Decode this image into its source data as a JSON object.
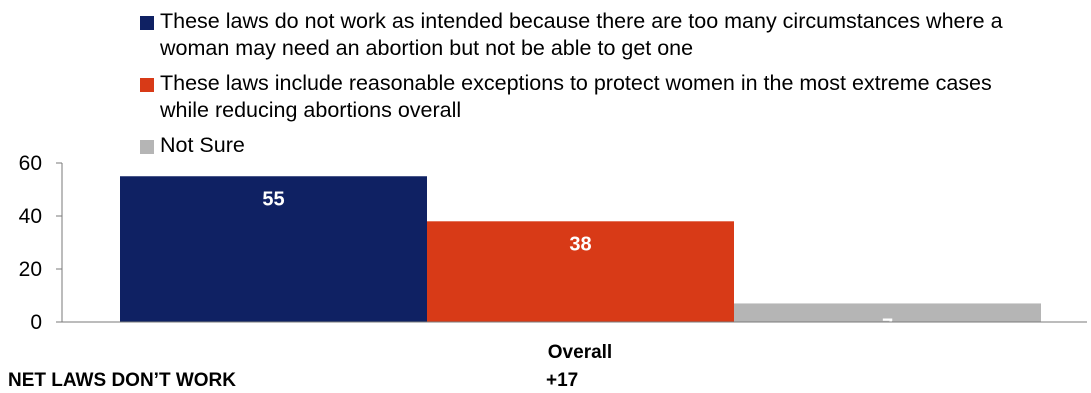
{
  "chart_data": {
    "type": "bar",
    "categories": [
      "Overall"
    ],
    "series": [
      {
        "name": "These laws do not work as intended because there are too many circumstances where a woman may need an abortion but not be able to get one",
        "values": [
          55
        ],
        "color": "#0f2163",
        "label_color": "#ffffff"
      },
      {
        "name": "These laws include reasonable exceptions to protect women in the most extreme cases while reducing abortions overall",
        "values": [
          38
        ],
        "color": "#d83a17",
        "label_color": "#ffffff"
      },
      {
        "name": "Not Sure",
        "values": [
          7
        ],
        "color": "#b5b5b5",
        "label_color": "#ffffff"
      }
    ],
    "ylim": [
      0,
      60
    ],
    "yticks": [
      "0",
      "20",
      "40",
      "60"
    ],
    "legend_position": "top",
    "grid": false
  },
  "net": {
    "label": "NET LAWS DON’T WORK",
    "value": "+17"
  }
}
